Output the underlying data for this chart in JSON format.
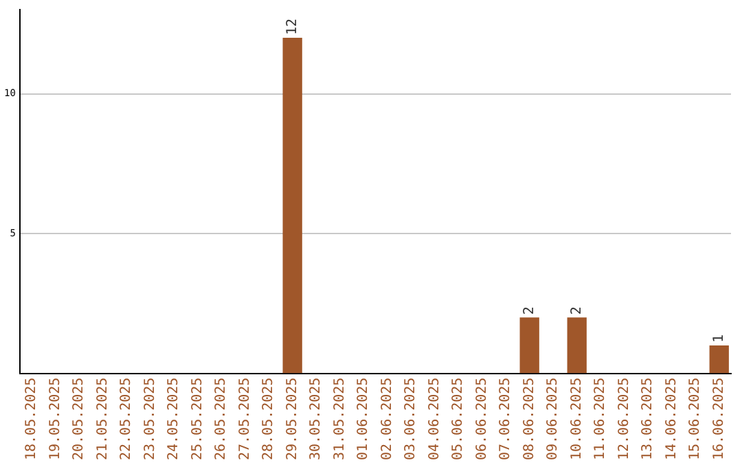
{
  "chart_data": {
    "type": "bar",
    "categories": [
      "18.05.2025",
      "19.05.2025",
      "20.05.2025",
      "21.05.2025",
      "22.05.2025",
      "23.05.2025",
      "24.05.2025",
      "25.05.2025",
      "26.05.2025",
      "27.05.2025",
      "28.05.2025",
      "29.05.2025",
      "30.05.2025",
      "31.05.2025",
      "01.06.2025",
      "02.06.2025",
      "03.06.2025",
      "04.06.2025",
      "05.06.2025",
      "06.06.2025",
      "07.06.2025",
      "08.06.2025",
      "09.06.2025",
      "10.06.2025",
      "11.06.2025",
      "12.06.2025",
      "13.06.2025",
      "14.06.2025",
      "15.06.2025",
      "16.06.2025"
    ],
    "values": [
      0,
      0,
      0,
      0,
      0,
      0,
      0,
      0,
      0,
      0,
      0,
      12,
      0,
      0,
      0,
      0,
      0,
      0,
      0,
      0,
      0,
      2,
      0,
      2,
      0,
      0,
      0,
      0,
      0,
      1
    ],
    "value_labels": [
      null,
      null,
      null,
      null,
      null,
      null,
      null,
      null,
      null,
      null,
      null,
      "12",
      null,
      null,
      null,
      null,
      null,
      null,
      null,
      null,
      null,
      "2",
      null,
      "2",
      null,
      null,
      null,
      null,
      null,
      "1"
    ],
    "color": "#a0572a",
    "ylim": [
      0,
      13
    ],
    "yticks": [
      5,
      10
    ],
    "grid": "y",
    "legend": false
  }
}
